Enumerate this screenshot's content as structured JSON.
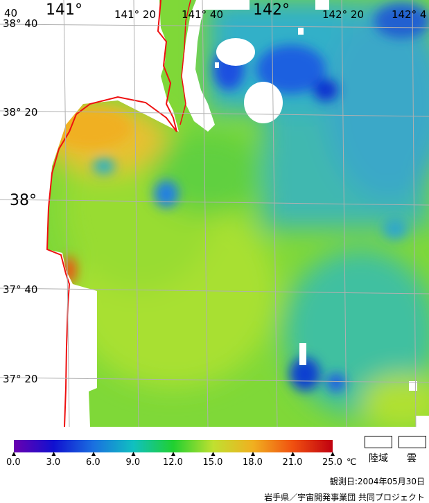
{
  "map": {
    "lon_labels": [
      {
        "text": "141°"
      },
      {
        "text": "141° 20"
      },
      {
        "text": "141° 40"
      },
      {
        "text": "142°"
      },
      {
        "text": "142° 20"
      },
      {
        "text": "142° 4"
      }
    ],
    "lat_labels": [
      {
        "text": "38° 40"
      },
      {
        "text": "38° 20"
      },
      {
        "text": "38°"
      },
      {
        "text": "37° 40"
      },
      {
        "text": "37° 20"
      }
    ],
    "corner_label": "40"
  },
  "colorbar": {
    "ticks": [
      "0.0",
      "3.0",
      "6.0",
      "9.0",
      "12.0",
      "15.0",
      "18.0",
      "21.0",
      "25.0"
    ],
    "unit": "℃",
    "colors": [
      "#6a00b0",
      "#1010d0",
      "#1a70e0",
      "#10c0c0",
      "#20d030",
      "#c0e030",
      "#f0b020",
      "#f05010",
      "#c00010"
    ]
  },
  "legend": {
    "land_label": "陸域",
    "cloud_label": "雲"
  },
  "footer": {
    "observation_date": "観測日:2004年05月30日",
    "credit": "岩手県／宇宙開発事業団 共同プロジェクト"
  }
}
